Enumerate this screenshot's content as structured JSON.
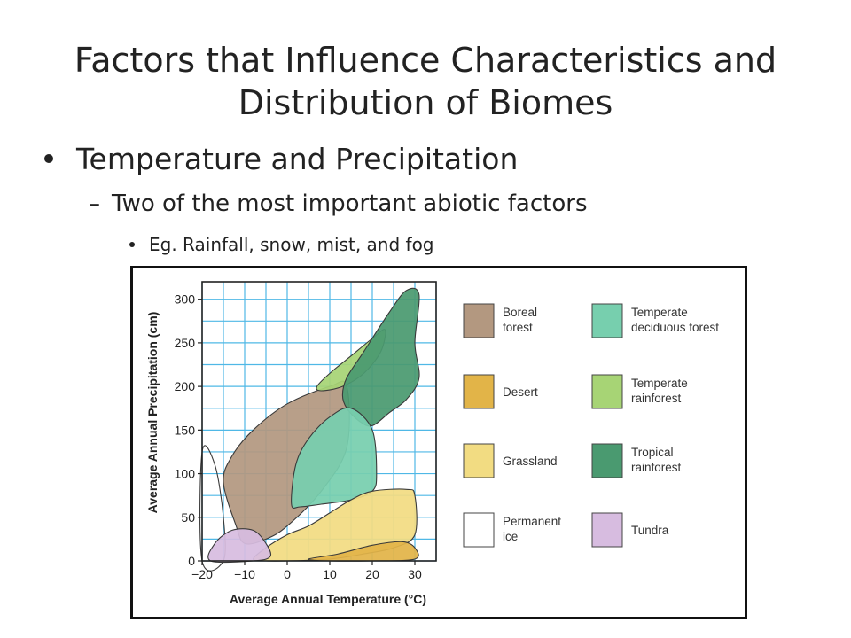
{
  "slide": {
    "title_line1": "Factors that Influence Characteristics and",
    "title_line2": "Distribution of Biomes",
    "bullet1": "Temperature and Precipitation",
    "bullet2": "Two of the most important abiotic factors",
    "bullet3": "Eg. Rainfall, snow, mist, and fog"
  },
  "chart_data": {
    "type": "area",
    "xlabel": "Average Annual Temperature (°C)",
    "ylabel": "Average Annual Precipitation (cm)",
    "xlim": [
      -20,
      35
    ],
    "ylim": [
      0,
      320
    ],
    "xticks": [
      -20,
      -10,
      0,
      10,
      20,
      30
    ],
    "xtick_labels": [
      "−20",
      "−10",
      "0",
      "10",
      "20",
      "30"
    ],
    "yticks": [
      0,
      50,
      100,
      150,
      200,
      250,
      300
    ],
    "ytick_labels": [
      "0",
      "50",
      "100",
      "150",
      "200",
      "250",
      "300"
    ],
    "grid": true,
    "grid_color": "#4fb8e6",
    "legend_position": "right",
    "series": [
      {
        "name": "Boreal forest",
        "color": "#b39880",
        "points": [
          [
            -12,
            40
          ],
          [
            -15,
            90
          ],
          [
            -13,
            120
          ],
          [
            -8,
            150
          ],
          [
            0,
            180
          ],
          [
            10,
            200
          ],
          [
            14,
            200
          ],
          [
            14,
            130
          ],
          [
            8,
            80
          ],
          [
            0,
            40
          ],
          [
            -5,
            25
          ],
          [
            -10,
            20
          ]
        ]
      },
      {
        "name": "Desert",
        "color": "#e2b448",
        "points": [
          [
            5,
            2
          ],
          [
            12,
            8
          ],
          [
            20,
            18
          ],
          [
            27,
            22
          ],
          [
            30,
            15
          ],
          [
            30,
            2
          ],
          [
            20,
            0
          ],
          [
            10,
            0
          ]
        ]
      },
      {
        "name": "Grassland",
        "color": "#f2dc82",
        "points": [
          [
            -8,
            2
          ],
          [
            -5,
            15
          ],
          [
            0,
            30
          ],
          [
            5,
            40
          ],
          [
            10,
            55
          ],
          [
            15,
            70
          ],
          [
            20,
            80
          ],
          [
            28,
            82
          ],
          [
            30,
            75
          ],
          [
            30,
            30
          ],
          [
            25,
            15
          ],
          [
            18,
            8
          ],
          [
            10,
            2
          ],
          [
            0,
            0
          ],
          [
            -5,
            0
          ]
        ]
      },
      {
        "name": "Permanent ice",
        "color": "#ffffff",
        "points": [
          [
            -20,
            0
          ],
          [
            -20,
            125
          ],
          [
            -17,
            110
          ],
          [
            -15,
            50
          ],
          [
            -15,
            0
          ]
        ]
      },
      {
        "name": "Temperate deciduous forest",
        "color": "#77cfae",
        "points": [
          [
            1,
            65
          ],
          [
            2,
            110
          ],
          [
            5,
            140
          ],
          [
            10,
            165
          ],
          [
            15,
            175
          ],
          [
            20,
            150
          ],
          [
            21,
            100
          ],
          [
            20,
            80
          ],
          [
            15,
            70
          ],
          [
            8,
            65
          ],
          [
            3,
            62
          ]
        ]
      },
      {
        "name": "Temperate rainforest",
        "color": "#a7d475",
        "points": [
          [
            7,
            200
          ],
          [
            10,
            215
          ],
          [
            15,
            235
          ],
          [
            20,
            255
          ],
          [
            23,
            265
          ],
          [
            22,
            240
          ],
          [
            18,
            215
          ],
          [
            13,
            200
          ],
          [
            8,
            195
          ]
        ]
      },
      {
        "name": "Tropical rainforest",
        "color": "#4a9a70",
        "points": [
          [
            13,
            190
          ],
          [
            14,
            210
          ],
          [
            18,
            240
          ],
          [
            24,
            285
          ],
          [
            28,
            310
          ],
          [
            31,
            305
          ],
          [
            30,
            250
          ],
          [
            31,
            210
          ],
          [
            28,
            185
          ],
          [
            24,
            170
          ],
          [
            20,
            155
          ],
          [
            17,
            160
          ],
          [
            14,
            175
          ]
        ]
      },
      {
        "name": "Tundra",
        "color": "#d7bce0",
        "points": [
          [
            -18,
            0
          ],
          [
            -17,
            20
          ],
          [
            -13,
            35
          ],
          [
            -8,
            35
          ],
          [
            -5,
            20
          ],
          [
            -4,
            5
          ],
          [
            -8,
            0
          ]
        ]
      }
    ]
  }
}
